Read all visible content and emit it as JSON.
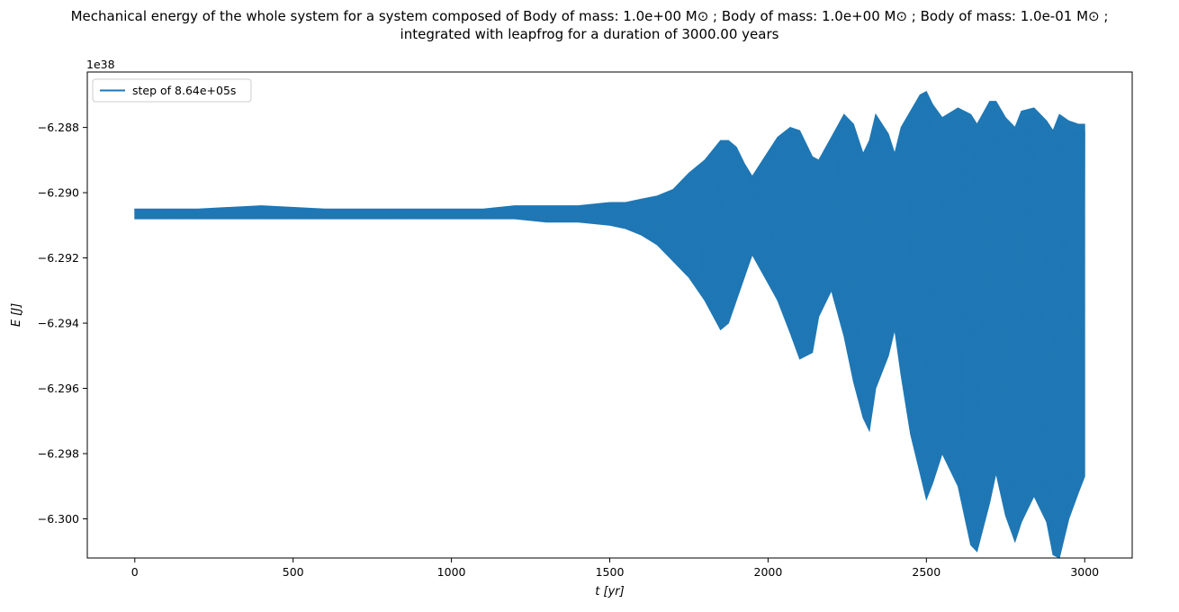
{
  "chart_data": {
    "type": "line",
    "title": "Mechanical energy of the whole system for a system composed of Body of mass: 1.0e+00 M⊙ ; Body of mass: 1.0e+00 M⊙ ; Body of mass: 1.0e-01 M⊙ ;",
    "subtitle": "integrated with leapfrog for a duration of 3000.00 years",
    "xlabel": "t [yr]",
    "ylabel": "E [J]",
    "y_offset_label": "1e38",
    "xlim": [
      -150,
      3150
    ],
    "ylim": [
      -6.3012,
      -6.2863
    ],
    "x_ticks": [
      0,
      500,
      1000,
      1500,
      2000,
      2500,
      3000
    ],
    "x_tick_labels": [
      "0",
      "500",
      "1000",
      "1500",
      "2000",
      "2500",
      "3000"
    ],
    "y_ticks": [
      -6.288,
      -6.29,
      -6.292,
      -6.294,
      -6.296,
      -6.298,
      -6.3
    ],
    "y_tick_labels": [
      "−6.288",
      "−6.290",
      "−6.292",
      "−6.294",
      "−6.296",
      "−6.298",
      "−6.300"
    ],
    "grid": false,
    "legend_position": "top-left",
    "series": [
      {
        "name": "step of 8.64e+05s",
        "color": "#1f77b4",
        "envelope": {
          "x": [
            0,
            200,
            400,
            600,
            800,
            1000,
            1100,
            1200,
            1300,
            1400,
            1500,
            1550,
            1600,
            1650,
            1700,
            1750,
            1800,
            1850,
            1875,
            1900,
            1925,
            1950,
            1990,
            2030,
            2070,
            2100,
            2140,
            2160,
            2200,
            2240,
            2270,
            2300,
            2320,
            2340,
            2380,
            2400,
            2420,
            2450,
            2480,
            2500,
            2520,
            2550,
            2600,
            2640,
            2660,
            2700,
            2720,
            2750,
            2780,
            2800,
            2840,
            2880,
            2900,
            2920,
            2950,
            2980,
            3000
          ],
          "upper": [
            -6.2905,
            -6.2905,
            -6.2904,
            -6.2905,
            -6.2905,
            -6.2905,
            -6.2905,
            -6.2904,
            -6.2904,
            -6.2904,
            -6.2903,
            -6.2903,
            -6.2902,
            -6.2901,
            -6.2899,
            -6.2894,
            -6.289,
            -6.2884,
            -6.2884,
            -6.2886,
            -6.2891,
            -6.2895,
            -6.2889,
            -6.2883,
            -6.288,
            -6.2881,
            -6.2889,
            -6.289,
            -6.2883,
            -6.2876,
            -6.2879,
            -6.2888,
            -6.2884,
            -6.2876,
            -6.2882,
            -6.2888,
            -6.288,
            -6.2875,
            -6.287,
            -6.2869,
            -6.2873,
            -6.2877,
            -6.2874,
            -6.2876,
            -6.2879,
            -6.2872,
            -6.2872,
            -6.2877,
            -6.288,
            -6.2875,
            -6.2874,
            -6.2878,
            -6.2881,
            -6.2876,
            -6.2878,
            -6.2879,
            -6.2879
          ],
          "lower": [
            -6.2908,
            -6.2908,
            -6.2908,
            -6.2908,
            -6.2908,
            -6.2908,
            -6.2908,
            -6.2908,
            -6.2909,
            -6.2909,
            -6.291,
            -6.2911,
            -6.2913,
            -6.2916,
            -6.2921,
            -6.2926,
            -6.2933,
            -6.2942,
            -6.294,
            -6.2933,
            -6.2926,
            -6.2919,
            -6.2926,
            -6.2933,
            -6.2943,
            -6.2951,
            -6.2949,
            -6.2938,
            -6.293,
            -6.2944,
            -6.2958,
            -6.2969,
            -6.2973,
            -6.296,
            -6.295,
            -6.2942,
            -6.2956,
            -6.2974,
            -6.2986,
            -6.2994,
            -6.2989,
            -6.298,
            -6.299,
            -6.3008,
            -6.301,
            -6.2995,
            -6.2986,
            -6.2999,
            -6.3007,
            -6.3001,
            -6.2993,
            -6.3001,
            -6.3011,
            -6.3012,
            -6.3,
            -6.2992,
            -6.2987
          ]
        }
      }
    ]
  }
}
